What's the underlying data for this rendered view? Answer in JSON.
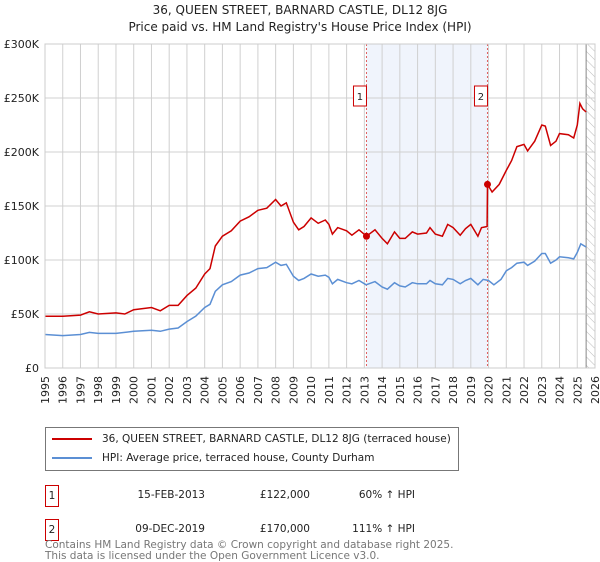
{
  "chart_data": {
    "type": "line",
    "title": "36, QUEEN STREET, BARNARD CASTLE, DL12 8JG",
    "subtitle": "Price paid vs. HM Land Registry's House Price Index (HPI)",
    "xlabel": "",
    "ylabel": "",
    "xlim": [
      1995,
      2026
    ],
    "ylim": [
      0,
      300000
    ],
    "x_ticks": [
      "1995",
      "1996",
      "1997",
      "1998",
      "1999",
      "2000",
      "2001",
      "2002",
      "2003",
      "2004",
      "2005",
      "2006",
      "2007",
      "2008",
      "2009",
      "2010",
      "2011",
      "2012",
      "2013",
      "2014",
      "2015",
      "2016",
      "2017",
      "2018",
      "2019",
      "2020",
      "2021",
      "2022",
      "2023",
      "2024",
      "2025",
      "2026"
    ],
    "y_ticks": [
      {
        "value": 0,
        "label": "£0"
      },
      {
        "value": 50000,
        "label": "£50K"
      },
      {
        "value": 100000,
        "label": "£100K"
      },
      {
        "value": 150000,
        "label": "£150K"
      },
      {
        "value": 200000,
        "label": "£200K"
      },
      {
        "value": 250000,
        "label": "£250K"
      },
      {
        "value": 300000,
        "label": "£300K"
      }
    ],
    "grid": true,
    "forecast_hatch_from": 2025.5,
    "series": [
      {
        "name": "36, QUEEN STREET, BARNARD CASTLE, DL12 8JG (terraced house)",
        "color": "#cc0000",
        "points": [
          [
            1995,
            48
          ],
          [
            1996,
            48
          ],
          [
            1997,
            49
          ],
          [
            1997.5,
            52
          ],
          [
            1998,
            50
          ],
          [
            1999,
            51
          ],
          [
            1999.5,
            50
          ],
          [
            2000,
            54
          ],
          [
            2001,
            56
          ],
          [
            2001.5,
            53
          ],
          [
            2002,
            58
          ],
          [
            2002.5,
            58
          ],
          [
            2003,
            67
          ],
          [
            2003.5,
            74
          ],
          [
            2004,
            87
          ],
          [
            2004.3,
            92
          ],
          [
            2004.6,
            113
          ],
          [
            2005,
            122
          ],
          [
            2005.5,
            127
          ],
          [
            2006,
            136
          ],
          [
            2006.5,
            140
          ],
          [
            2007,
            146
          ],
          [
            2007.5,
            148
          ],
          [
            2008,
            156
          ],
          [
            2008.3,
            150
          ],
          [
            2008.6,
            153
          ],
          [
            2009,
            135
          ],
          [
            2009.3,
            128
          ],
          [
            2009.6,
            131
          ],
          [
            2010,
            139
          ],
          [
            2010.4,
            134
          ],
          [
            2010.8,
            137
          ],
          [
            2011,
            133
          ],
          [
            2011.2,
            124
          ],
          [
            2011.5,
            130
          ],
          [
            2012,
            127
          ],
          [
            2012.3,
            123
          ],
          [
            2012.7,
            128
          ],
          [
            2013.12,
            122
          ],
          [
            2013.6,
            128
          ],
          [
            2014,
            120
          ],
          [
            2014.3,
            115
          ],
          [
            2014.7,
            126
          ],
          [
            2015,
            120
          ],
          [
            2015.3,
            120
          ],
          [
            2015.7,
            126
          ],
          [
            2016,
            124
          ],
          [
            2016.5,
            125
          ],
          [
            2016.7,
            130
          ],
          [
            2017,
            124
          ],
          [
            2017.4,
            122
          ],
          [
            2017.7,
            133
          ],
          [
            2018,
            130
          ],
          [
            2018.4,
            123
          ],
          [
            2018.7,
            129
          ],
          [
            2019,
            133
          ],
          [
            2019.4,
            122
          ],
          [
            2019.6,
            130
          ],
          [
            2019.92,
            131
          ],
          [
            2019.94,
            170
          ],
          [
            2020.2,
            163
          ],
          [
            2020.6,
            170
          ],
          [
            2021,
            183
          ],
          [
            2021.3,
            192
          ],
          [
            2021.6,
            205
          ],
          [
            2022,
            207
          ],
          [
            2022.2,
            201
          ],
          [
            2022.6,
            210
          ],
          [
            2023,
            225
          ],
          [
            2023.2,
            224
          ],
          [
            2023.5,
            206
          ],
          [
            2023.8,
            210
          ],
          [
            2024,
            217
          ],
          [
            2024.5,
            216
          ],
          [
            2024.8,
            213
          ],
          [
            2025,
            225
          ],
          [
            2025.15,
            245
          ],
          [
            2025.3,
            240
          ],
          [
            2025.5,
            237
          ]
        ]
      },
      {
        "name": "HPI: Average price, terraced house, County Durham",
        "color": "#5b8fd4",
        "points": [
          [
            1995,
            31
          ],
          [
            1996,
            30
          ],
          [
            1997,
            31
          ],
          [
            1997.5,
            33
          ],
          [
            1998,
            32
          ],
          [
            1999,
            32
          ],
          [
            2000,
            34
          ],
          [
            2001,
            35
          ],
          [
            2001.5,
            34
          ],
          [
            2002,
            36
          ],
          [
            2002.5,
            37
          ],
          [
            2003,
            43
          ],
          [
            2003.5,
            48
          ],
          [
            2004,
            56
          ],
          [
            2004.3,
            59
          ],
          [
            2004.6,
            71
          ],
          [
            2005,
            77
          ],
          [
            2005.5,
            80
          ],
          [
            2006,
            86
          ],
          [
            2006.5,
            88
          ],
          [
            2007,
            92
          ],
          [
            2007.5,
            93
          ],
          [
            2008,
            98
          ],
          [
            2008.3,
            95
          ],
          [
            2008.6,
            96
          ],
          [
            2009,
            85
          ],
          [
            2009.3,
            81
          ],
          [
            2009.6,
            83
          ],
          [
            2010,
            87
          ],
          [
            2010.4,
            85
          ],
          [
            2010.8,
            86
          ],
          [
            2011,
            84
          ],
          [
            2011.2,
            78
          ],
          [
            2011.5,
            82
          ],
          [
            2012,
            79
          ],
          [
            2012.3,
            78
          ],
          [
            2012.7,
            81
          ],
          [
            2013.1,
            77
          ],
          [
            2013.6,
            80
          ],
          [
            2014,
            75
          ],
          [
            2014.3,
            73
          ],
          [
            2014.7,
            79
          ],
          [
            2015,
            76
          ],
          [
            2015.3,
            75
          ],
          [
            2015.7,
            79
          ],
          [
            2016,
            78
          ],
          [
            2016.5,
            78
          ],
          [
            2016.7,
            81
          ],
          [
            2017,
            78
          ],
          [
            2017.4,
            77
          ],
          [
            2017.7,
            83
          ],
          [
            2018,
            82
          ],
          [
            2018.4,
            78
          ],
          [
            2018.7,
            81
          ],
          [
            2019,
            83
          ],
          [
            2019.4,
            77
          ],
          [
            2019.7,
            82
          ],
          [
            2020,
            81
          ],
          [
            2020.3,
            77
          ],
          [
            2020.7,
            82
          ],
          [
            2021,
            90
          ],
          [
            2021.3,
            93
          ],
          [
            2021.6,
            97
          ],
          [
            2022,
            98
          ],
          [
            2022.2,
            95
          ],
          [
            2022.6,
            99
          ],
          [
            2023,
            106
          ],
          [
            2023.2,
            106
          ],
          [
            2023.5,
            97
          ],
          [
            2023.8,
            100
          ],
          [
            2024,
            103
          ],
          [
            2024.5,
            102
          ],
          [
            2024.8,
            101
          ],
          [
            2025,
            107
          ],
          [
            2025.2,
            115
          ],
          [
            2025.5,
            112
          ]
        ]
      }
    ],
    "value_unit": "thousands GBP",
    "transactions": [
      {
        "id": "1",
        "x": 2013.12,
        "value": 122,
        "date": "15-FEB-2013",
        "price": "£122,000",
        "hpi": "60% ↑ HPI"
      },
      {
        "id": "2",
        "x": 2019.94,
        "value": 170,
        "date": "09-DEC-2019",
        "price": "£170,000",
        "hpi": "111% ↑ HPI"
      }
    ]
  },
  "legend": {
    "red_label": "36, QUEEN STREET, BARNARD CASTLE, DL12 8JG (terraced house)",
    "blue_label": "HPI: Average price, terraced house, County Durham"
  },
  "footer": {
    "line1": "Contains HM Land Registry data © Crown copyright and database right 2025.",
    "line2": "This data is licensed under the Open Government Licence v3.0."
  }
}
